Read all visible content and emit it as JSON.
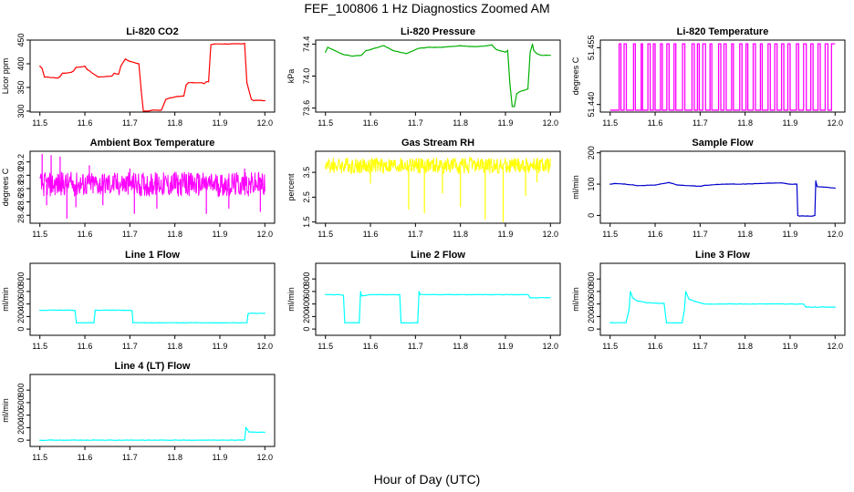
{
  "figure": {
    "title": "FEF_100806  1 Hz Diagnostics Zoomed AM",
    "xlabel": "Hour of Day (UTC)"
  },
  "chart_data": [
    {
      "type": "line",
      "title": "Li-820 CO2",
      "ylabel": "Licor ppm",
      "color": "#ff0000",
      "xlim": [
        11.5,
        12.0
      ],
      "ylim": [
        298,
        450
      ],
      "xticks": [
        "11.5",
        "11.6",
        "11.7",
        "11.8",
        "11.9",
        "12.0"
      ],
      "yticks": [
        "300",
        "350",
        "400",
        "450"
      ],
      "x": [
        11.5,
        11.505,
        11.51,
        11.54,
        11.545,
        11.55,
        11.555,
        11.57,
        11.575,
        11.58,
        11.6,
        11.605,
        11.625,
        11.63,
        11.66,
        11.665,
        11.675,
        11.68,
        11.69,
        11.7,
        11.72,
        11.725,
        11.73,
        11.74,
        11.75,
        11.77,
        11.78,
        11.79,
        11.8,
        11.82,
        11.825,
        11.83,
        11.86,
        11.865,
        11.87,
        11.875,
        11.88,
        11.89,
        11.95,
        11.955,
        11.96,
        11.97,
        11.975,
        11.98,
        12.0
      ],
      "values": [
        395,
        390,
        372,
        370,
        373,
        380,
        380,
        382,
        385,
        392,
        395,
        388,
        375,
        372,
        374,
        380,
        378,
        395,
        410,
        405,
        400,
        345,
        300,
        300,
        302,
        302,
        325,
        328,
        330,
        332,
        355,
        360,
        360,
        358,
        362,
        362,
        440,
        442,
        442,
        443,
        360,
        325,
        322,
        323,
        322
      ]
    },
    {
      "type": "line",
      "title": "Li-820 Pressure",
      "ylabel": "kPa",
      "color": "#00b000",
      "xlim": [
        11.5,
        12.0
      ],
      "ylim": [
        73.55,
        74.45
      ],
      "xticks": [
        "11.5",
        "11.6",
        "11.7",
        "11.8",
        "11.9",
        "12.0"
      ],
      "yticks": [
        "73.6",
        "74.0",
        "74.4"
      ],
      "x": [
        11.5,
        11.505,
        11.52,
        11.54,
        11.56,
        11.58,
        11.59,
        11.6,
        11.61,
        11.63,
        11.65,
        11.68,
        11.7,
        11.71,
        11.73,
        11.76,
        11.78,
        11.8,
        11.82,
        11.84,
        11.86,
        11.87,
        11.88,
        11.9,
        11.905,
        11.91,
        11.915,
        11.92,
        11.925,
        11.93,
        11.94,
        11.95,
        11.955,
        11.96,
        11.963,
        11.97,
        11.98,
        12.0
      ],
      "values": [
        74.3,
        74.36,
        74.32,
        74.27,
        74.25,
        74.26,
        74.32,
        74.33,
        74.35,
        74.38,
        74.32,
        74.28,
        74.33,
        74.35,
        74.36,
        74.36,
        74.37,
        74.38,
        74.37,
        74.37,
        74.38,
        74.39,
        74.33,
        74.3,
        74.32,
        73.9,
        73.62,
        73.62,
        73.78,
        73.8,
        73.82,
        73.84,
        74.3,
        74.4,
        74.32,
        74.28,
        74.26,
        74.26
      ]
    },
    {
      "type": "line",
      "title": "Li-820 Temperature",
      "ylabel": "degrees C",
      "color": "#ff00ff",
      "xlim": [
        11.5,
        12.0
      ],
      "ylim": [
        51.438,
        51.457
      ],
      "xticks": [
        "11.5",
        "11.6",
        "11.7",
        "11.8",
        "11.9",
        "12.0"
      ],
      "yticks": [
        "51.440",
        "51.455"
      ],
      "low": 51.4385,
      "high": 51.456,
      "switch_times": [
        11.52,
        11.524,
        11.531,
        11.536,
        11.552,
        11.556,
        11.569,
        11.572,
        11.584,
        11.589,
        11.596,
        11.6,
        11.612,
        11.616,
        11.626,
        11.631,
        11.642,
        11.646,
        11.661,
        11.666,
        11.682,
        11.687,
        11.694,
        11.698,
        11.706,
        11.712,
        11.722,
        11.726,
        11.741,
        11.746,
        11.753,
        11.758,
        11.77,
        11.774,
        11.788,
        11.793,
        11.802,
        11.806,
        11.818,
        11.823,
        11.834,
        11.838,
        11.851,
        11.856,
        11.866,
        11.871,
        11.881,
        11.886,
        11.895,
        11.9,
        11.914,
        11.919,
        11.93,
        11.936,
        11.946,
        11.951,
        11.962,
        11.967,
        11.978,
        11.984,
        11.992
      ]
    },
    {
      "type": "line",
      "title": "Ambient Box Temperature",
      "ylabel": "degrees C",
      "color": "#ff00ff",
      "xlim": [
        11.5,
        12.0
      ],
      "ylim": [
        28.28,
        29.36
      ],
      "xticks": [
        "11.5",
        "11.6",
        "11.7",
        "11.8",
        "11.9",
        "12.0"
      ],
      "yticks": [
        "28.4",
        "28.6",
        "28.8",
        "29.0",
        "29.2"
      ],
      "band": [
        28.68,
        29.05
      ],
      "center": 28.86,
      "spikes": [
        {
          "x": 11.505,
          "y": 29.32
        },
        {
          "x": 11.515,
          "y": 28.55
        },
        {
          "x": 11.525,
          "y": 29.3
        },
        {
          "x": 11.545,
          "y": 29.28
        },
        {
          "x": 11.56,
          "y": 28.35
        },
        {
          "x": 11.58,
          "y": 28.52
        },
        {
          "x": 11.61,
          "y": 29.15
        },
        {
          "x": 11.64,
          "y": 28.55
        },
        {
          "x": 11.7,
          "y": 29.1
        },
        {
          "x": 11.71,
          "y": 28.42
        },
        {
          "x": 11.76,
          "y": 28.5
        },
        {
          "x": 11.8,
          "y": 29.05
        },
        {
          "x": 11.87,
          "y": 28.42
        },
        {
          "x": 11.92,
          "y": 28.5
        },
        {
          "x": 11.955,
          "y": 29.1
        },
        {
          "x": 11.99,
          "y": 28.45
        }
      ]
    },
    {
      "type": "line",
      "title": "Gas Stream RH",
      "ylabel": "percent",
      "color": "#ffff00",
      "xlim": [
        11.5,
        12.0
      ],
      "ylim": [
        1.45,
        4.35
      ],
      "xticks": [
        "11.5",
        "11.6",
        "11.7",
        "11.8",
        "11.9",
        "12.0"
      ],
      "yticks": [
        "1.5",
        "2.5",
        "3.5"
      ],
      "band": [
        3.45,
        4.1
      ],
      "center": 3.75,
      "spikes": [
        {
          "x": 11.685,
          "y": 2.0
        },
        {
          "x": 11.72,
          "y": 1.85
        },
        {
          "x": 11.76,
          "y": 2.65
        },
        {
          "x": 11.8,
          "y": 2.1
        },
        {
          "x": 11.855,
          "y": 1.6
        },
        {
          "x": 11.895,
          "y": 1.5
        },
        {
          "x": 11.945,
          "y": 2.55
        },
        {
          "x": 11.6,
          "y": 3.05
        },
        {
          "x": 11.97,
          "y": 3.1
        }
      ]
    },
    {
      "type": "line",
      "title": "Sample Flow",
      "ylabel": "ml/min",
      "color": "#0000cc",
      "xlim": [
        11.5,
        12.0
      ],
      "ylim": [
        -25,
        205
      ],
      "xticks": [
        "11.5",
        "11.6",
        "11.7",
        "11.8",
        "11.9",
        "12.0"
      ],
      "yticks": [
        "0",
        "100",
        "200"
      ],
      "x": [
        11.5,
        11.51,
        11.55,
        11.56,
        11.6,
        11.61,
        11.63,
        11.65,
        11.7,
        11.71,
        11.75,
        11.8,
        11.85,
        11.88,
        11.9,
        11.915,
        11.917,
        11.92,
        11.95,
        11.955,
        11.957,
        11.96,
        11.98,
        12.0
      ],
      "values": [
        100,
        102,
        98,
        95,
        97,
        100,
        105,
        97,
        93,
        96,
        100,
        100,
        103,
        104,
        100,
        100,
        0,
        -2,
        -2,
        0,
        110,
        92,
        90,
        87
      ]
    },
    {
      "type": "line",
      "title": "Line 1 Flow",
      "ylabel": "ml/min",
      "color": "#00ffff",
      "xlim": [
        11.5,
        12.0
      ],
      "ylim": [
        -100,
        1050
      ],
      "xticks": [
        "11.5",
        "11.6",
        "11.7",
        "11.8",
        "11.9",
        "12.0"
      ],
      "yticks": [
        "0",
        "200",
        "400",
        "600",
        "800"
      ],
      "x": [
        11.5,
        11.57,
        11.578,
        11.581,
        11.62,
        11.623,
        11.68,
        11.7,
        11.705,
        11.707,
        11.95,
        11.96,
        11.963,
        12.0
      ],
      "values": [
        300,
        300,
        295,
        100,
        100,
        300,
        300,
        300,
        290,
        100,
        100,
        100,
        250,
        250
      ]
    },
    {
      "type": "line",
      "title": "Line 2 Flow",
      "ylabel": "ml/min",
      "color": "#00ffff",
      "xlim": [
        11.5,
        12.0
      ],
      "ylim": [
        -100,
        1050
      ],
      "xticks": [
        "11.5",
        "11.6",
        "11.7",
        "11.8",
        "11.9",
        "12.0"
      ],
      "yticks": [
        "0",
        "200",
        "400",
        "600",
        "800"
      ],
      "x": [
        11.5,
        11.53,
        11.54,
        11.543,
        11.575,
        11.578,
        11.58,
        11.6,
        11.665,
        11.668,
        11.705,
        11.708,
        11.71,
        11.95,
        11.955,
        12.0
      ],
      "values": [
        550,
        550,
        540,
        100,
        100,
        600,
        530,
        550,
        550,
        100,
        100,
        600,
        550,
        550,
        500,
        500
      ]
    },
    {
      "type": "line",
      "title": "Line 3 Flow",
      "ylabel": "ml/min",
      "color": "#00ffff",
      "xlim": [
        11.5,
        12.0
      ],
      "ylim": [
        -100,
        1050
      ],
      "xticks": [
        "11.5",
        "11.6",
        "11.7",
        "11.8",
        "11.9",
        "12.0"
      ],
      "yticks": [
        "0",
        "200",
        "400",
        "600",
        "800"
      ],
      "x": [
        11.5,
        11.535,
        11.542,
        11.545,
        11.55,
        11.56,
        11.58,
        11.62,
        11.625,
        11.628,
        11.66,
        11.665,
        11.668,
        11.675,
        11.69,
        11.71,
        11.8,
        11.9,
        11.93,
        11.935,
        12.0
      ],
      "values": [
        100,
        100,
        300,
        600,
        500,
        450,
        420,
        410,
        100,
        100,
        100,
        300,
        600,
        480,
        440,
        400,
        400,
        400,
        400,
        350,
        350
      ]
    },
    {
      "type": "line",
      "title": "Line 4 (LT) Flow",
      "ylabel": "ml/min",
      "color": "#00ffff",
      "xlim": [
        11.5,
        12.0
      ],
      "ylim": [
        -100,
        1050
      ],
      "xticks": [
        "11.5",
        "11.6",
        "11.7",
        "11.8",
        "11.9",
        "12.0"
      ],
      "yticks": [
        "0",
        "200",
        "400",
        "600",
        "800"
      ],
      "x": [
        11.5,
        11.95,
        11.955,
        11.958,
        11.965,
        12.0
      ],
      "values": [
        0,
        0,
        5,
        200,
        130,
        125
      ]
    }
  ]
}
